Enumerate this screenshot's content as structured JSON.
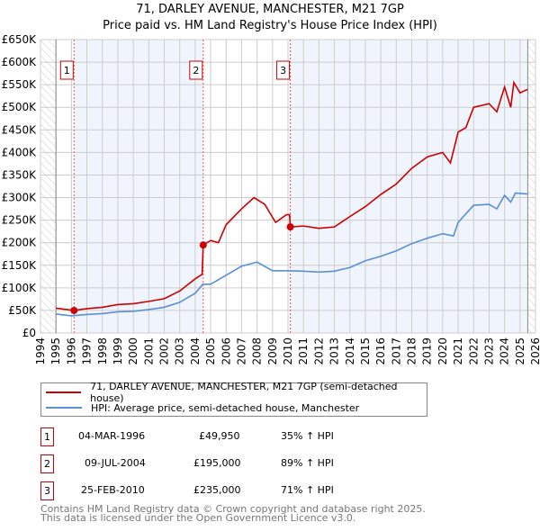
{
  "chart_data": {
    "type": "line",
    "title": "71, DARLEY AVENUE, MANCHESTER, M21 7GP",
    "subtitle": "Price paid vs. HM Land Registry's House Price Index (HPI)",
    "xlim": [
      1994,
      2026
    ],
    "ylim": [
      0,
      650000
    ],
    "x_ticks": [
      "1994",
      "1995",
      "1996",
      "1997",
      "1998",
      "1999",
      "2000",
      "2001",
      "2002",
      "2003",
      "2004",
      "2005",
      "2006",
      "2007",
      "2008",
      "2009",
      "2010",
      "2011",
      "2012",
      "2013",
      "2014",
      "2015",
      "2016",
      "2017",
      "2018",
      "2019",
      "2020",
      "2021",
      "2022",
      "2023",
      "2024",
      "2025",
      "2026"
    ],
    "y_ticks": [
      "£0",
      "£50K",
      "£100K",
      "£150K",
      "£200K",
      "£250K",
      "£300K",
      "£350K",
      "£400K",
      "£450K",
      "£500K",
      "£550K",
      "£600K",
      "£650K"
    ],
    "grid": true,
    "series": [
      {
        "name": "71, DARLEY AVENUE, MANCHESTER, M21 7GP (semi-detached house)",
        "color": "#cc0000",
        "x": [
          1995,
          1996.17,
          1997,
          1998,
          1999,
          2000,
          2001,
          2002,
          2003,
          2004,
          2004.45,
          2004.52,
          2005,
          2005.5,
          2006,
          2007,
          2007.8,
          2008.5,
          2009.2,
          2009.9,
          2010.1,
          2010.15,
          2011,
          2012,
          2013,
          2014,
          2015,
          2016,
          2017,
          2018,
          2019,
          2020,
          2020.5,
          2021,
          2021.5,
          2022,
          2023,
          2023.5,
          2024,
          2024.4,
          2024.6,
          2025,
          2025.5
        ],
        "y": [
          55000,
          49950,
          54000,
          57000,
          63000,
          65000,
          70000,
          76000,
          93000,
          120000,
          130000,
          195000,
          205000,
          200000,
          240000,
          275000,
          300000,
          285000,
          245000,
          262000,
          262000,
          235000,
          237000,
          232000,
          235000,
          258000,
          280000,
          307000,
          330000,
          365000,
          390000,
          400000,
          377000,
          445000,
          455000,
          500000,
          508000,
          490000,
          545000,
          500000,
          555000,
          532000,
          540000
        ]
      },
      {
        "name": "HPI: Average price, semi-detached house, Manchester",
        "color": "#5b8fd6",
        "x": [
          1995,
          1996,
          1997,
          1998,
          1999,
          2000,
          2001,
          2002,
          2003,
          2004,
          2004.5,
          2005,
          2006,
          2007,
          2008,
          2009,
          2010,
          2011,
          2012,
          2013,
          2014,
          2015,
          2016,
          2017,
          2018,
          2019,
          2020,
          2020.7,
          2021,
          2022,
          2023,
          2023.5,
          2024,
          2024.4,
          2024.7,
          2025.5
        ],
        "y": [
          42000,
          38000,
          41000,
          43000,
          47000,
          48000,
          52000,
          57000,
          68000,
          88000,
          108000,
          108000,
          128000,
          148000,
          157000,
          138000,
          138000,
          137000,
          135000,
          137000,
          145000,
          160000,
          170000,
          182000,
          198000,
          210000,
          220000,
          215000,
          245000,
          283000,
          285000,
          275000,
          305000,
          290000,
          310000,
          308000
        ]
      }
    ],
    "sales": [
      {
        "label": "1",
        "x": 1996.17,
        "y": 49950,
        "date": "04-MAR-1996",
        "price": "£49,950",
        "hpi": "35% ↑ HPI"
      },
      {
        "label": "2",
        "x": 2004.52,
        "y": 195000,
        "date": "09-JUL-2004",
        "price": "£195,000",
        "hpi": "89% ↑ HPI"
      },
      {
        "label": "3",
        "x": 2010.15,
        "y": 235000,
        "date": "25-FEB-2010",
        "price": "£235,000",
        "hpi": "71% ↑ HPI"
      }
    ],
    "legend_placement": "below"
  },
  "footer": [
    "Contains HM Land Registry data © Crown copyright and database right 2025.",
    "This data is licensed under the Open Government Licence v3.0."
  ]
}
